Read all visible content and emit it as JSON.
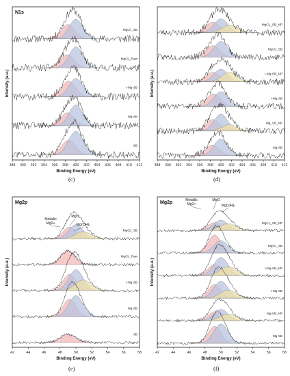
{
  "panels": [
    {
      "id": "c",
      "caption": "(c)",
      "element_label": "N1s",
      "xlabel": "Binding Energy (eV)",
      "ylabel": "Intensity (a.u.)",
      "xlim": [
        388,
        412
      ],
      "xticks": [
        "388",
        "390",
        "392",
        "394",
        "396",
        "398",
        "400",
        "402",
        "404",
        "406",
        "408",
        "410",
        "412"
      ],
      "traces": [
        {
          "label": "MgCl2_SB",
          "peaks": [
            {
              "center": 398.5,
              "amp": 0.55,
              "width": 1.3,
              "color": "#f0b8b8"
            },
            {
              "center": 400.0,
              "amp": 0.75,
              "width": 1.3,
              "color": "#b8c4e0"
            }
          ]
        },
        {
          "label": "MgCl2_Raw",
          "peaks": [
            {
              "center": 398.4,
              "amp": 0.5,
              "width": 1.3,
              "color": "#f0b8b8"
            },
            {
              "center": 400.0,
              "amp": 0.8,
              "width": 1.3,
              "color": "#b8c4e0"
            }
          ]
        },
        {
          "label": "I-Mg-SB",
          "peaks": [
            {
              "center": 398.6,
              "amp": 0.6,
              "width": 1.3,
              "color": "#f0b8b8"
            },
            {
              "center": 400.0,
              "amp": 0.7,
              "width": 1.3,
              "color": "#b8c4e0"
            }
          ]
        },
        {
          "label": "Mg-SB",
          "peaks": [
            {
              "center": 398.4,
              "amp": 0.5,
              "width": 1.3,
              "color": "#f0b8b8"
            },
            {
              "center": 400.0,
              "amp": 0.8,
              "width": 1.3,
              "color": "#b8c4e0"
            }
          ]
        },
        {
          "label": "SB",
          "peaks": [
            {
              "center": 398.6,
              "amp": 0.55,
              "width": 1.3,
              "color": "#f0b8b8"
            },
            {
              "center": 400.0,
              "amp": 0.9,
              "width": 1.4,
              "color": "#b8c4e0"
            }
          ]
        }
      ]
    },
    {
      "id": "d",
      "caption": "(d)",
      "element_label": "",
      "xlabel": "Binding Energy (eV)",
      "ylabel": "Intensity (a.u.)",
      "xlim": [
        388,
        412
      ],
      "xticks": [
        "388",
        "390",
        "392",
        "394",
        "396",
        "398",
        "400",
        "402",
        "404",
        "406",
        "408",
        "410",
        "412"
      ],
      "traces": [
        {
          "label": "MgCl2_SB_NP",
          "peaks": [
            {
              "center": 398.5,
              "amp": 0.5,
              "width": 1.3,
              "color": "#f0b8b8"
            },
            {
              "center": 400.0,
              "amp": 0.65,
              "width": 1.3,
              "color": "#b8c4e0"
            },
            {
              "center": 401.6,
              "amp": 0.35,
              "width": 1.4,
              "color": "#eee0a8"
            }
          ]
        },
        {
          "label": "MgCl2_SB",
          "peaks": [
            {
              "center": 398.5,
              "amp": 0.55,
              "width": 1.3,
              "color": "#f0b8b8"
            },
            {
              "center": 400.0,
              "amp": 0.75,
              "width": 1.3,
              "color": "#b8c4e0"
            }
          ]
        },
        {
          "label": "I-Mg-SB_NP",
          "peaks": [
            {
              "center": 398.5,
              "amp": 0.45,
              "width": 1.3,
              "color": "#f0b8b8"
            },
            {
              "center": 400.0,
              "amp": 0.6,
              "width": 1.3,
              "color": "#b8c4e0"
            },
            {
              "center": 401.6,
              "amp": 0.45,
              "width": 1.4,
              "color": "#eee0a8"
            }
          ]
        },
        {
          "label": "I-Mg-SB",
          "peaks": [
            {
              "center": 398.6,
              "amp": 0.6,
              "width": 1.3,
              "color": "#f0b8b8"
            },
            {
              "center": 400.0,
              "amp": 0.7,
              "width": 1.3,
              "color": "#b8c4e0"
            }
          ]
        },
        {
          "label": "Mg_SB_NP",
          "peaks": [
            {
              "center": 398.5,
              "amp": 0.55,
              "width": 1.3,
              "color": "#f0b8b8"
            },
            {
              "center": 400.0,
              "amp": 0.8,
              "width": 1.3,
              "color": "#b8c4e0"
            },
            {
              "center": 401.6,
              "amp": 0.3,
              "width": 1.4,
              "color": "#eee0a8"
            }
          ]
        },
        {
          "label": "Mg-SB",
          "peaks": [
            {
              "center": 398.4,
              "amp": 0.5,
              "width": 1.3,
              "color": "#f0b8b8"
            },
            {
              "center": 400.0,
              "amp": 0.8,
              "width": 1.3,
              "color": "#b8c4e0"
            }
          ]
        }
      ]
    },
    {
      "id": "e",
      "caption": "(e)",
      "element_label": "Mg2p",
      "xlabel": "Binding Energy (eV)",
      "ylabel": "Intensity (a.u.)",
      "xlim": [
        42,
        58
      ],
      "xticks": [
        "42",
        "44",
        "46",
        "48",
        "50",
        "52",
        "54",
        "56",
        "58"
      ],
      "annotations": [
        "Metallic Mg2+",
        "MgO",
        "Mg(OH)2"
      ],
      "traces": [
        {
          "label": "MgCl2_SB",
          "peaks": [
            {
              "center": 49.2,
              "amp": 0.5,
              "width": 0.8,
              "color": "#f0b8b8"
            },
            {
              "center": 50.0,
              "amp": 0.6,
              "width": 0.9,
              "color": "#b8c4e0"
            },
            {
              "center": 50.9,
              "amp": 0.3,
              "width": 1.0,
              "color": "#eee0a8"
            }
          ]
        },
        {
          "label": "MgCl2_Raw",
          "peaks": [
            {
              "center": 49.0,
              "amp": 0.6,
              "width": 0.9,
              "color": "#f0b8b8"
            }
          ]
        },
        {
          "label": "I-Mg-SB",
          "peaks": [
            {
              "center": 49.2,
              "amp": 0.7,
              "width": 0.8,
              "color": "#f0b8b8"
            },
            {
              "center": 50.0,
              "amp": 0.9,
              "width": 0.9,
              "color": "#b8c4e0"
            },
            {
              "center": 50.9,
              "amp": 0.45,
              "width": 1.0,
              "color": "#eee0a8"
            }
          ]
        },
        {
          "label": "Mg-SB",
          "peaks": [
            {
              "center": 49.2,
              "amp": 0.75,
              "width": 0.8,
              "color": "#f0b8b8"
            },
            {
              "center": 50.0,
              "amp": 0.9,
              "width": 0.9,
              "color": "#b8c4e0"
            }
          ]
        },
        {
          "label": "SB",
          "peaks": [
            {
              "center": 49.0,
              "amp": 0.35,
              "width": 1.0,
              "color": "#f0b8b8"
            }
          ]
        }
      ]
    },
    {
      "id": "f",
      "caption": "(f)",
      "element_label": "Mg2p",
      "xlabel": "Binding Energy (eV)",
      "ylabel": "Intensity (a.u.)",
      "xlim": [
        42,
        58
      ],
      "xticks": [
        "42",
        "44",
        "46",
        "48",
        "50",
        "52",
        "54",
        "56",
        "58"
      ],
      "annotations": [
        "Metallic Mg2+",
        "MgO",
        "Mg(OH)2"
      ],
      "traces": [
        {
          "label": "MgCl2_SB_NP",
          "peaks": [
            {
              "center": 49.2,
              "amp": 0.35,
              "width": 0.8,
              "color": "#f0b8b8"
            },
            {
              "center": 50.0,
              "amp": 0.45,
              "width": 0.9,
              "color": "#b8c4e0"
            },
            {
              "center": 50.9,
              "amp": 0.3,
              "width": 1.0,
              "color": "#eee0a8"
            }
          ]
        },
        {
          "label": "MgCl2_SB",
          "peaks": [
            {
              "center": 49.2,
              "amp": 0.8,
              "width": 0.8,
              "color": "#f0b8b8"
            },
            {
              "center": 50.0,
              "amp": 0.55,
              "width": 0.9,
              "color": "#b8c4e0"
            }
          ]
        },
        {
          "label": "I-Mg-SB_NP",
          "peaks": [
            {
              "center": 49.2,
              "amp": 0.5,
              "width": 0.8,
              "color": "#f0b8b8"
            },
            {
              "center": 50.0,
              "amp": 0.8,
              "width": 0.9,
              "color": "#b8c4e0"
            },
            {
              "center": 50.9,
              "amp": 0.4,
              "width": 1.0,
              "color": "#eee0a8"
            }
          ]
        },
        {
          "label": "I-Mg-SB",
          "peaks": [
            {
              "center": 49.2,
              "amp": 0.6,
              "width": 0.8,
              "color": "#f0b8b8"
            },
            {
              "center": 50.0,
              "amp": 0.75,
              "width": 0.9,
              "color": "#b8c4e0"
            },
            {
              "center": 50.9,
              "amp": 0.35,
              "width": 1.0,
              "color": "#eee0a8"
            }
          ]
        },
        {
          "label": "Mg-SB_NP",
          "peaks": [
            {
              "center": 49.2,
              "amp": 0.4,
              "width": 0.8,
              "color": "#f0b8b8"
            },
            {
              "center": 50.0,
              "amp": 0.5,
              "width": 0.9,
              "color": "#b8c4e0"
            },
            {
              "center": 50.9,
              "amp": 0.3,
              "width": 1.0,
              "color": "#eee0a8"
            }
          ]
        },
        {
          "label": "Mg-SB",
          "peaks": [
            {
              "center": 49.2,
              "amp": 0.75,
              "width": 0.8,
              "color": "#f0b8b8"
            },
            {
              "center": 50.0,
              "amp": 0.85,
              "width": 0.9,
              "color": "#b8c4e0"
            }
          ]
        }
      ]
    }
  ],
  "chart_data": [
    {
      "type": "line",
      "caption": "(c)",
      "title": "N1s",
      "xlabel": "Binding Energy (eV)",
      "ylabel": "Intensity (a.u.)",
      "xlim": [
        388,
        412
      ],
      "series": [
        {
          "name": "MgCl2_SB",
          "peak_centers": [
            398.5,
            400.0
          ]
        },
        {
          "name": "MgCl2_Raw",
          "peak_centers": [
            398.4,
            400.0
          ]
        },
        {
          "name": "I-Mg-SB",
          "peak_centers": [
            398.6,
            400.0
          ]
        },
        {
          "name": "Mg-SB",
          "peak_centers": [
            398.4,
            400.0
          ]
        },
        {
          "name": "SB",
          "peak_centers": [
            398.6,
            400.0
          ]
        }
      ]
    },
    {
      "type": "line",
      "caption": "(d)",
      "xlabel": "Binding Energy (eV)",
      "ylabel": "Intensity (a.u.)",
      "xlim": [
        388,
        412
      ],
      "series": [
        {
          "name": "MgCl2_SB_NP",
          "peak_centers": [
            398.5,
            400.0,
            401.6
          ]
        },
        {
          "name": "MgCl2_SB",
          "peak_centers": [
            398.5,
            400.0
          ]
        },
        {
          "name": "I-Mg-SB_NP",
          "peak_centers": [
            398.5,
            400.0,
            401.6
          ]
        },
        {
          "name": "I-Mg-SB",
          "peak_centers": [
            398.6,
            400.0
          ]
        },
        {
          "name": "Mg_SB_NP",
          "peak_centers": [
            398.5,
            400.0,
            401.6
          ]
        },
        {
          "name": "Mg-SB",
          "peak_centers": [
            398.4,
            400.0
          ]
        }
      ]
    },
    {
      "type": "line",
      "caption": "(e)",
      "title": "Mg2p",
      "xlabel": "Binding Energy (eV)",
      "ylabel": "Intensity (a.u.)",
      "xlim": [
        42,
        58
      ],
      "annotations": [
        "Metallic Mg2+",
        "MgO",
        "Mg(OH)2"
      ],
      "series": [
        {
          "name": "MgCl2_SB",
          "peak_centers": [
            49.2,
            50.0,
            50.9
          ]
        },
        {
          "name": "MgCl2_Raw",
          "peak_centers": [
            49.0
          ]
        },
        {
          "name": "I-Mg-SB",
          "peak_centers": [
            49.2,
            50.0,
            50.9
          ]
        },
        {
          "name": "Mg-SB",
          "peak_centers": [
            49.2,
            50.0
          ]
        },
        {
          "name": "SB",
          "peak_centers": [
            49.0
          ]
        }
      ]
    },
    {
      "type": "line",
      "caption": "(f)",
      "title": "Mg2p",
      "xlabel": "Binding Energy (eV)",
      "ylabel": "Intensity (a.u.)",
      "xlim": [
        42,
        58
      ],
      "annotations": [
        "Metallic Mg2+",
        "MgO",
        "Mg(OH)2"
      ],
      "series": [
        {
          "name": "MgCl2_SB_NP",
          "peak_centers": [
            49.2,
            50.0,
            50.9
          ]
        },
        {
          "name": "MgCl2_SB",
          "peak_centers": [
            49.2,
            50.0
          ]
        },
        {
          "name": "I-Mg-SB_NP",
          "peak_centers": [
            49.2,
            50.0,
            50.9
          ]
        },
        {
          "name": "I-Mg-SB",
          "peak_centers": [
            49.2,
            50.0,
            50.9
          ]
        },
        {
          "name": "Mg-SB_NP",
          "peak_centers": [
            49.2,
            50.0,
            50.9
          ]
        },
        {
          "name": "Mg-SB",
          "peak_centers": [
            49.2,
            50.0
          ]
        }
      ]
    }
  ]
}
